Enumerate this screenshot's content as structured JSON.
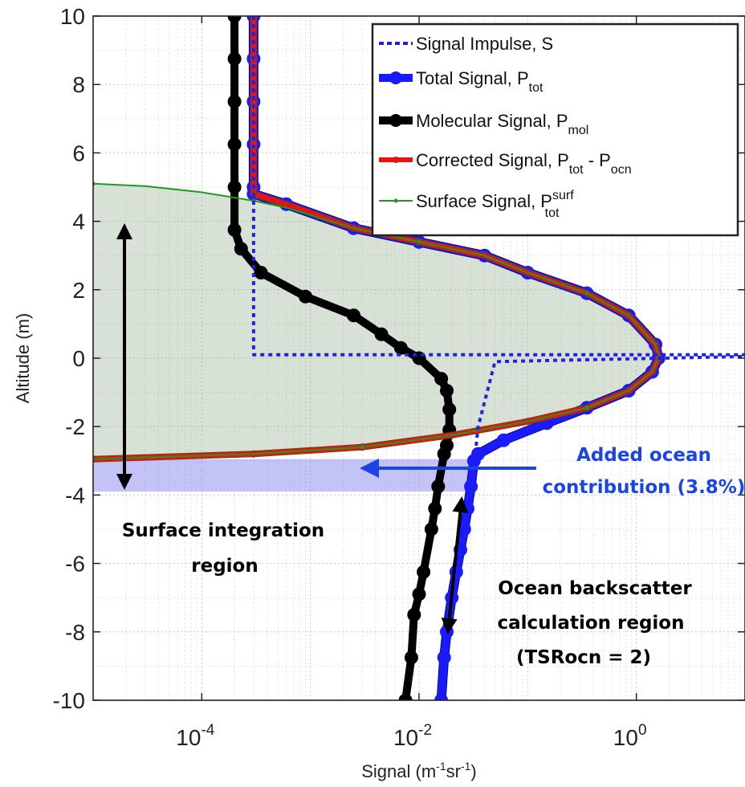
{
  "chart_data": {
    "type": "line",
    "xlabel": "Signal (m",
    "xlabel_sup1": "-1",
    "xlabel_mid": "sr",
    "xlabel_sup2": "-1",
    "xlabel_end": ")",
    "ylabel": "Altitude (m)",
    "xscale": "log",
    "xlim": [
      1e-05,
      10
    ],
    "ylim": [
      -10,
      10
    ],
    "grid": true,
    "legend_placement": "top-right",
    "x_ticks": [
      {
        "value": 0.0001,
        "base": "10",
        "exp": "-4"
      },
      {
        "value": 0.01,
        "base": "10",
        "exp": "-2"
      },
      {
        "value": 1,
        "base": "10",
        "exp": "0"
      }
    ],
    "y_ticks": [
      10,
      8,
      6,
      4,
      2,
      0,
      -2,
      -4,
      -6,
      -8,
      -10
    ],
    "y_tick_labels": [
      "10",
      "8",
      "6",
      "4",
      "2",
      "0",
      "-2",
      "-4",
      "-6",
      "-8",
      "-10"
    ],
    "series": [
      {
        "name": "Signal Impulse, S",
        "name_main": "Signal Impulse, S",
        "name_sub": "",
        "name_sup": "",
        "name_tail": "",
        "name_tail_sub": "",
        "color": "#2222dd",
        "style": "dotted",
        "x": [
          0.0003,
          0.0003,
          0.0003,
          10,
          10,
          0.05,
          0.035,
          0.03
        ],
        "y": [
          10,
          4.5,
          0.1,
          0.1,
          0.05,
          -0.1,
          -2.0,
          -4.0
        ]
      },
      {
        "name": "Total Signal, P_tot",
        "name_main": "Total Signal, P",
        "name_sub": "tot",
        "name_sup": "",
        "name_tail": "",
        "name_tail_sub": "",
        "color": "#1a1aff",
        "style": "thick-markers",
        "x": [
          0.0003,
          0.0003,
          0.0003,
          0.0003,
          0.0003,
          0.0003,
          0.0006,
          0.0025,
          0.01,
          0.04,
          0.1,
          0.35,
          0.85,
          1.5,
          1.6,
          1.4,
          0.85,
          0.35,
          0.15,
          0.06,
          0.035,
          0.032,
          0.03,
          0.028,
          0.026,
          0.024,
          0.022,
          0.02,
          0.018,
          0.017,
          0.016
        ],
        "y": [
          10,
          8.75,
          7.5,
          6.25,
          5.0,
          4.8,
          4.5,
          3.8,
          3.4,
          3.0,
          2.5,
          1.9,
          1.25,
          0.4,
          0,
          -0.4,
          -0.95,
          -1.45,
          -1.9,
          -2.4,
          -2.8,
          -3.0,
          -3.75,
          -4.4,
          -5.0,
          -5.6,
          -6.25,
          -7.0,
          -8.0,
          -8.75,
          -10
        ]
      },
      {
        "name": "Molecular Signal, P_mol",
        "name_main": "Molecular Signal, P",
        "name_sub": "mol",
        "name_sup": "",
        "name_tail": "",
        "name_tail_sub": "",
        "color": "#000000",
        "style": "thick-markers",
        "x": [
          0.0002,
          0.0002,
          0.0002,
          0.0002,
          0.0002,
          0.0002,
          0.00023,
          0.00035,
          0.0009,
          0.0025,
          0.0045,
          0.0068,
          0.01,
          0.016,
          0.018,
          0.019,
          0.019,
          0.018,
          0.017,
          0.015,
          0.014,
          0.013,
          0.011,
          0.01,
          0.009,
          0.0085,
          0.0075
        ],
        "y": [
          10,
          8.75,
          7.5,
          6.25,
          5.0,
          3.75,
          3.2,
          2.5,
          1.8,
          1.25,
          0.7,
          0.3,
          0,
          -0.6,
          -0.95,
          -1.5,
          -2.1,
          -2.55,
          -2.8,
          -3.75,
          -4.4,
          -5.0,
          -6.25,
          -6.9,
          -7.5,
          -8.75,
          -10
        ]
      },
      {
        "name": "Corrected Signal, P_tot - P_ocn",
        "name_main": "Corrected Signal, P",
        "name_sub": "tot",
        "name_sup": "",
        "name_tail": " - P",
        "name_tail_sub": "ocn",
        "color": "#ee1111",
        "style": "medium-markers",
        "x": [
          0.0003,
          0.0003,
          0.0003,
          0.0003,
          0.0003,
          0.0003,
          0.0006,
          0.0025,
          0.01,
          0.04,
          0.1,
          0.35,
          0.85,
          1.5,
          1.6,
          1.4,
          0.85,
          0.35,
          0.1,
          0.02,
          0.003,
          0.0003,
          1e-05
        ],
        "y": [
          10,
          8.75,
          7.5,
          6.25,
          5.0,
          4.8,
          4.5,
          3.8,
          3.4,
          3.0,
          2.5,
          1.9,
          1.25,
          0.4,
          0,
          -0.4,
          -0.95,
          -1.45,
          -1.85,
          -2.25,
          -2.6,
          -2.8,
          -2.95
        ]
      },
      {
        "name": "Surface Signal, P_tot^surf",
        "name_main": "Surface Signal, P",
        "name_sub": "tot",
        "name_sup": "surf",
        "name_tail": "",
        "name_tail_sub": "",
        "color": "#1e9a1e",
        "style": "thin",
        "x": [
          1e-05,
          3e-05,
          0.0001,
          0.0003,
          0.0006,
          0.0025,
          0.01,
          0.04,
          0.1,
          0.35,
          0.85,
          1.5,
          1.6,
          1.4,
          0.85,
          0.35,
          0.1,
          0.02,
          0.003,
          0.0003,
          1e-05
        ],
        "y": [
          5.1,
          5.03,
          4.85,
          4.6,
          4.4,
          3.8,
          3.4,
          3.0,
          2.5,
          1.9,
          1.25,
          0.4,
          0,
          -0.4,
          -0.95,
          -1.45,
          -1.85,
          -2.25,
          -2.6,
          -2.8,
          -2.95
        ]
      }
    ],
    "annotations": {
      "added_ocean_line1": "Added ocean",
      "added_ocean_line2": "contribution (3.8%)",
      "surface_line1": "Surface integration",
      "surface_line2": "region",
      "ocean_line1": "Ocean backscatter",
      "ocean_line2": "calculation region",
      "ocean_line3": "(TSRocn = 2)"
    },
    "colors": {
      "surface_fill": "#8faa8a",
      "ocean_fill": "#7b7bef",
      "annotation_blue": "#1a44e8",
      "annotation_black": "#000000"
    }
  }
}
